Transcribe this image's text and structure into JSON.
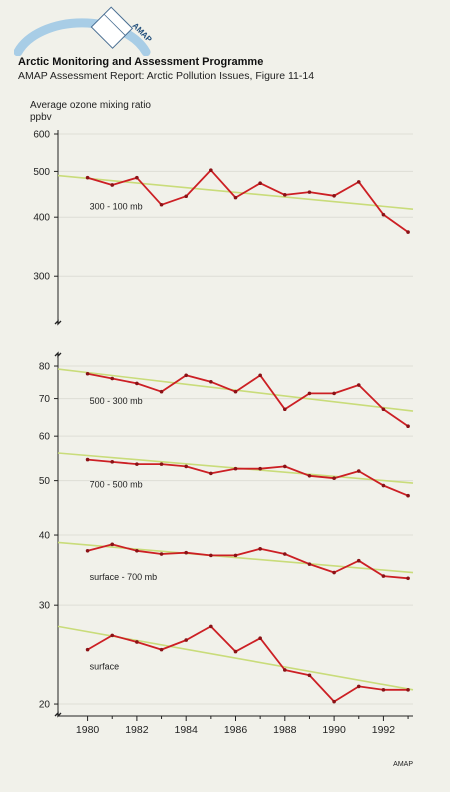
{
  "header": {
    "title": "Arctic Monitoring and Assessment Programme",
    "subtitle": "AMAP Assessment Report: Arctic Pollution Issues, Figure 11-14",
    "logo_text": "AMAP"
  },
  "colors": {
    "background": "#f1f1ea",
    "data_line": "#cc1f24",
    "trend_line": "#c9dc7a",
    "grid": "#deded6",
    "axis": "#222222",
    "logo_arc": "#a8cde6"
  },
  "chart_data": {
    "type": "line",
    "ylabel": "Average ozone mixing ratio",
    "yunit": "ppbv",
    "credit": "AMAP",
    "x": [
      1980,
      1981,
      1982,
      1983,
      1984,
      1985,
      1986,
      1987,
      1988,
      1989,
      1990,
      1991,
      1992,
      1993
    ],
    "xticks": [
      1980,
      1982,
      1984,
      1986,
      1988,
      1990,
      1992
    ],
    "xlim": [
      1978.8,
      1993.2
    ],
    "panels": [
      {
        "yscale": "log",
        "ylim": [
          240,
          600
        ],
        "yticks": [
          300,
          400,
          500,
          600
        ],
        "series": [
          {
            "name": "300 - 100 mb",
            "values": [
              485,
              468,
              485,
              425,
              443,
              503,
              440,
              472,
              446,
              452,
              444,
              475,
              405,
              372
            ],
            "trend": [
              490,
              416
            ]
          }
        ]
      },
      {
        "yscale": "log",
        "ylim": [
          19.2,
          82
        ],
        "yticks": [
          20,
          30,
          40,
          50,
          60,
          70,
          80
        ],
        "series": [
          {
            "name": "500 - 300 mb",
            "values": [
              77.5,
              76,
              74.5,
              72,
              77,
              75,
              72,
              77,
              67,
              71.5,
              71.5,
              74,
              67,
              62.5
            ],
            "trend": [
              79,
              66.5
            ]
          },
          {
            "name": "700 - 500 mb",
            "values": [
              54.5,
              54,
              53.5,
              53.5,
              53,
              51.5,
              52.5,
              52.5,
              53,
              51,
              50.5,
              52,
              49,
              47
            ],
            "trend": [
              56,
              49.5
            ]
          },
          {
            "name": "surface - 700 mb",
            "values": [
              37.5,
              38.5,
              37.5,
              37,
              37.2,
              36.8,
              36.8,
              37.8,
              37,
              35.5,
              34.3,
              36,
              33.8,
              33.5
            ],
            "trend": [
              38.8,
              34.3
            ]
          },
          {
            "name": "surface",
            "values": [
              25,
              26.5,
              25.8,
              25,
              26,
              27.5,
              24.8,
              26.2,
              23,
              22.5,
              20.2,
              21.5,
              21.2,
              21.2
            ],
            "trend": [
              27.5,
              21.2
            ]
          }
        ]
      }
    ]
  }
}
